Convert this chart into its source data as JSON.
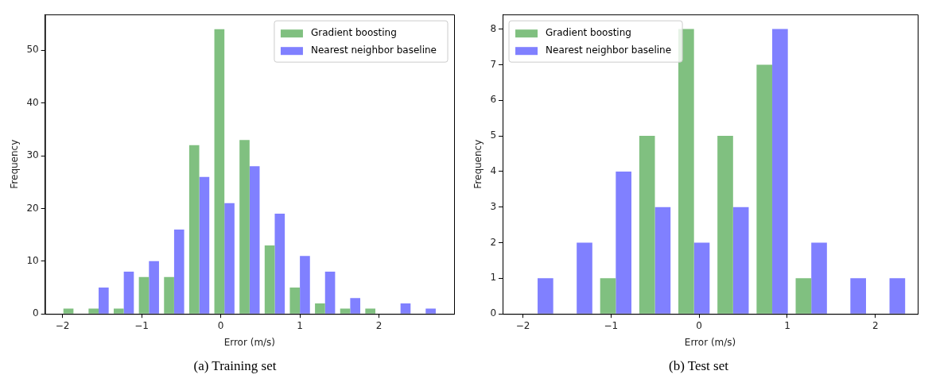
{
  "chart_data": [
    {
      "type": "histogram",
      "xlabel": "Error (m/s)",
      "ylabel": "Frequency",
      "annotations": [
        "(a) Training set"
      ],
      "bins": [
        -2.02,
        -1.702,
        -1.384,
        -1.066,
        -0.748,
        -0.43,
        -0.112,
        0.206,
        0.524,
        0.842,
        1.16,
        1.478,
        1.796,
        2.114,
        2.432,
        2.75
      ],
      "series": [
        {
          "name": "Gradient boosting",
          "color": "#80c080",
          "values": [
            1,
            1,
            1,
            7,
            7,
            32,
            54,
            33,
            13,
            5,
            2,
            1,
            1,
            0,
            0
          ]
        },
        {
          "name": "Nearest neighbor baseline",
          "color": "#8080ff",
          "values": [
            0,
            5,
            8,
            10,
            16,
            26,
            21,
            28,
            19,
            11,
            8,
            3,
            0,
            2,
            1
          ]
        }
      ],
      "xlim": [
        -2.22,
        2.95
      ],
      "ylim": [
        0,
        56.8
      ],
      "xticks": [
        -2,
        -1,
        0,
        1,
        2
      ],
      "yticks": [
        0,
        10,
        20,
        30,
        40,
        50
      ],
      "grid": false,
      "legend": "top right"
    },
    {
      "type": "histogram",
      "xlabel": "Error (m/s)",
      "ylabel": "Frequency",
      "annotations": [
        "(b) Test set"
      ],
      "bins": [
        -2.055,
        -1.611,
        -1.168,
        -0.724,
        -0.28,
        0.163,
        0.607,
        1.051,
        1.494,
        1.938,
        2.382
      ],
      "series": [
        {
          "name": "Gradient boosting",
          "color": "#80c080",
          "values": [
            0,
            0,
            1,
            5,
            8,
            5,
            7,
            1,
            0,
            0
          ]
        },
        {
          "name": "Nearest neighbor baseline",
          "color": "#8080ff",
          "values": [
            1,
            2,
            4,
            3,
            2,
            3,
            8,
            2,
            1,
            1
          ]
        }
      ],
      "xlim": [
        -2.23,
        2.48
      ],
      "ylim": [
        0,
        8.41
      ],
      "xticks": [
        -2,
        -1,
        0,
        1,
        2
      ],
      "yticks": [
        0,
        1,
        2,
        3,
        4,
        5,
        6,
        7,
        8
      ],
      "grid": false,
      "legend": "top left"
    }
  ]
}
